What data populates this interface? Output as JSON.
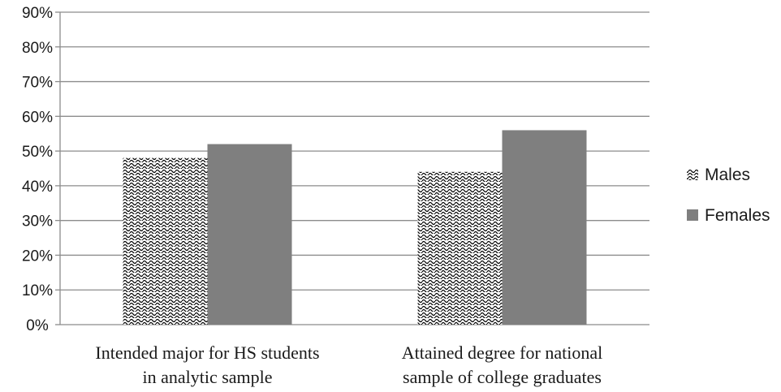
{
  "chart_data": {
    "type": "bar",
    "categories": [
      [
        "Intended major for HS students",
        "in analytic sample"
      ],
      [
        "Attained degree for national",
        "sample of college graduates"
      ]
    ],
    "series": [
      {
        "name": "Males",
        "values": [
          48,
          44
        ],
        "pattern": "wave-hatch",
        "color": "#000000"
      },
      {
        "name": "Females",
        "values": [
          52,
          56
        ],
        "color": "#7f7f7f"
      }
    ],
    "yticks": [
      "0%",
      "10%",
      "20%",
      "30%",
      "40%",
      "50%",
      "60%",
      "70%",
      "80%",
      "90%"
    ],
    "ylim": [
      0,
      90
    ],
    "grid": true,
    "legend_position": "right"
  }
}
